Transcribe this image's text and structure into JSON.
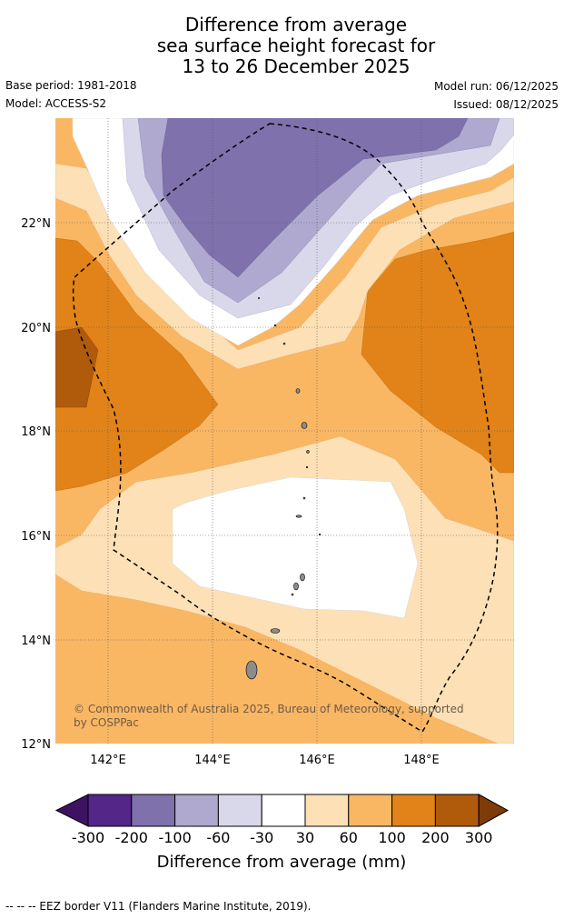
{
  "header": {
    "title_lines": [
      "Difference from average",
      "sea surface height forecast for",
      "13 to 26 December 2025"
    ],
    "base_period": "Base period: 1981-2018",
    "model": "Model: ACCESS-S2",
    "model_run": "Model run: 06/12/2025",
    "issued": "Issued: 08/12/2025"
  },
  "map": {
    "lon_range": [
      141.0,
      149.5
    ],
    "lat_range": [
      12.0,
      24.0
    ],
    "lon_ticks": [
      "142°E",
      "144°E",
      "146°E",
      "148°E"
    ],
    "lat_ticks": [
      "22°N",
      "20°N",
      "18°N",
      "16°N",
      "14°N",
      "12°N"
    ],
    "copyright": "© Commonwealth of Australia 2025, Bureau of Meteorology, supported by COSPPac",
    "copyright_lines": [
      "© Commonwealth of Australia 2025, Bureau of Meteorology, supported",
      "by COSPPac"
    ]
  },
  "legend": {
    "ticks": [
      "-300",
      "-200",
      "-100",
      "-60",
      "-30",
      "30",
      "60",
      "100",
      "200",
      "300"
    ],
    "colors": [
      "#3d1263",
      "#532688",
      "#7f71ac",
      "#afa9cf",
      "#d9d8ea",
      "#ffffff",
      "#fde0b6",
      "#f9b764",
      "#e18318",
      "#b05a0b",
      "#7e3b07"
    ],
    "label": "Difference from average (mm)"
  },
  "footer": {
    "eez_note": "--  --  -- EEZ border V11 (Flanders Marine Institute, 2019)."
  }
}
